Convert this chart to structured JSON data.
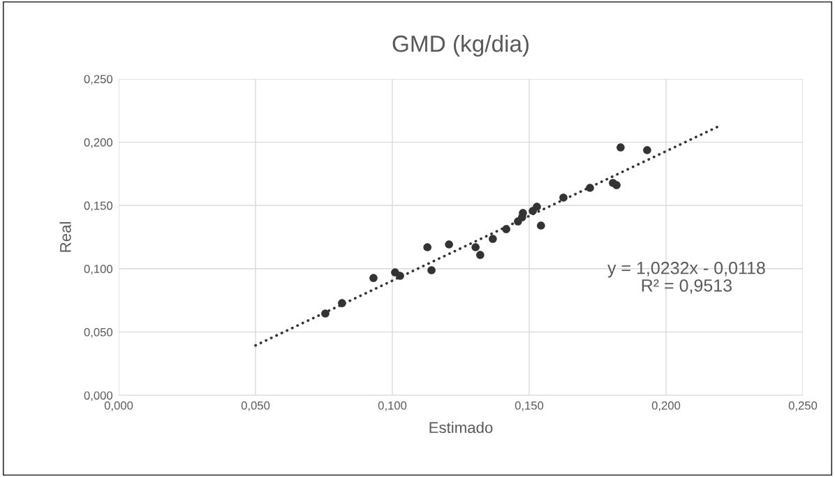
{
  "chart_data": {
    "type": "scatter",
    "title": "GMD (kg/dia)",
    "xlabel": "Estimado",
    "ylabel": "Real",
    "xlim": [
      0,
      0.25
    ],
    "ylim": [
      0,
      0.25
    ],
    "xticks": [
      {
        "value": 0,
        "label": "0,000"
      },
      {
        "value": 0.05,
        "label": "0,050"
      },
      {
        "value": 0.1,
        "label": "0,100"
      },
      {
        "value": 0.15,
        "label": "0,150"
      },
      {
        "value": 0.2,
        "label": "0,200"
      },
      {
        "value": 0.25,
        "label": "0,250"
      }
    ],
    "yticks": [
      {
        "value": 0,
        "label": "0,000"
      },
      {
        "value": 0.05,
        "label": "0,050"
      },
      {
        "value": 0.1,
        "label": "0,100"
      },
      {
        "value": 0.15,
        "label": "0,150"
      },
      {
        "value": 0.2,
        "label": "0,200"
      },
      {
        "value": 0.25,
        "label": "0,250"
      }
    ],
    "grid": true,
    "marker": "circle",
    "series": [
      {
        "color": "#333333",
        "x": [
          0.0755,
          0.0816,
          0.0931,
          0.101,
          0.1028,
          0.1128,
          0.1143,
          0.1207,
          0.1304,
          0.1321,
          0.1367,
          0.1416,
          0.1459,
          0.1474,
          0.1477,
          0.1513,
          0.1528,
          0.1543,
          0.1625,
          0.1722,
          0.1806,
          0.1819,
          0.1834,
          0.1931
        ],
        "values": [
          0.0646,
          0.0728,
          0.0927,
          0.0971,
          0.0944,
          0.117,
          0.0988,
          0.1192,
          0.117,
          0.1109,
          0.1236,
          0.1313,
          0.1374,
          0.1407,
          0.144,
          0.1457,
          0.149,
          0.1341,
          0.1562,
          0.1639,
          0.1678,
          0.1661,
          0.1959,
          0.1937
        ]
      },
      {
        "type": "line",
        "color": "#333333",
        "line_style": "dotted",
        "marker": "none",
        "x": [
          0.05,
          0.219
        ],
        "values": [
          0.0394,
          0.2123
        ]
      }
    ],
    "annotations": [
      "y = 1,0232x - 0,0118\nR² = 0,9513"
    ]
  }
}
